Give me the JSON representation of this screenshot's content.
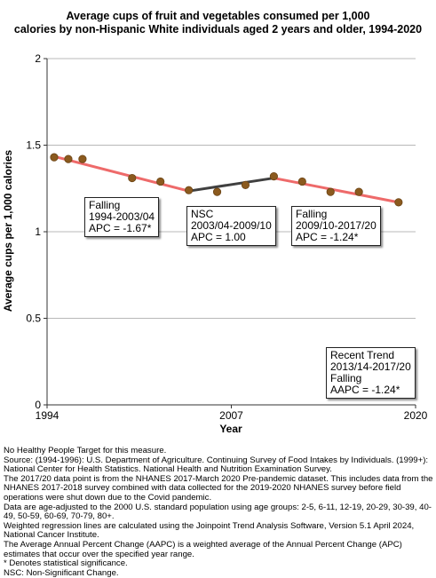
{
  "chart_data": {
    "type": "line",
    "title_lines": [
      "Average cups of fruit and vegetables consumed per 1,000",
      "calories by non-Hispanic White individuals aged 2 years and older, 1994-2020"
    ],
    "xlabel": "Year",
    "ylabel": "Average cups per 1,000 calories",
    "xlim": [
      1994,
      2020
    ],
    "ylim": [
      0,
      2
    ],
    "x_ticks": [
      1994,
      2007,
      2020
    ],
    "y_ticks": [
      0,
      0.5,
      1,
      1.5,
      2
    ],
    "y_tick_labels": [
      "0",
      "0.5",
      "1",
      "1.5",
      "2"
    ],
    "grid": "horizontal",
    "observed": {
      "x": [
        1994.5,
        1995.5,
        1996.5,
        2000,
        2002,
        2004,
        2006,
        2008,
        2010,
        2012,
        2014,
        2016,
        2018.8
      ],
      "y": [
        1.43,
        1.42,
        1.42,
        1.31,
        1.29,
        1.24,
        1.23,
        1.27,
        1.32,
        1.29,
        1.23,
        1.23,
        1.17
      ],
      "color": "#8B5A1E"
    },
    "segments": [
      {
        "x": [
          1994.5,
          2004
        ],
        "y": [
          1.435,
          1.235
        ],
        "color": "#EE6A6A"
      },
      {
        "x": [
          2004,
          2010
        ],
        "y": [
          1.235,
          1.31
        ],
        "color": "#404040"
      },
      {
        "x": [
          2010,
          2018.8
        ],
        "y": [
          1.31,
          1.17
        ],
        "color": "#EE6A6A"
      }
    ],
    "annotations": [
      {
        "lines": [
          "Falling",
          "1994-2003/04",
          "APC = -1.67*"
        ]
      },
      {
        "lines": [
          "NSC",
          "2003/04-2009/10",
          "APC =  1.00"
        ]
      },
      {
        "lines": [
          "Falling",
          "2009/10-2017/20",
          "APC = -1.24*"
        ]
      },
      {
        "lines": [
          "Recent Trend",
          "2013/14-2017/20",
          "Falling",
          "AAPC = -1.24*"
        ]
      }
    ]
  },
  "footnotes": [
    "No Healthy People Target for this measure.",
    "Source: (1994-1996): U.S. Department of Agriculture. Continuing Survey of Food Intakes by Individuals. (1999+): National Center for Health Statistics. National Health and Nutrition Examination Survey.",
    "The 2017/20 data point is from the NHANES 2017-March 2020 Pre-pandemic dataset. This includes data from the NHANES 2017-2018 survey combined with data collected for the 2019-2020 NHANES survey before field operations were shut down due to the Covid pandemic.",
    "Data are age-adjusted to the 2000 U.S. standard population using age groups: 2-5, 6-11, 12-19, 20-29, 30-39, 40-49, 50-59, 60-69, 70-79, 80+.",
    "Weighted regression lines are calculated using the Joinpoint Trend Analysis Software, Version 5.1 April 2024, National Cancer Institute.",
    "The Average Annual Percent Change (AAPC) is a weighted average of the Annual Percent Change (APC) estimates that occur over the specified year range.",
    "* Denotes statistical significance.",
    "NSC: Non-Significant Change."
  ]
}
